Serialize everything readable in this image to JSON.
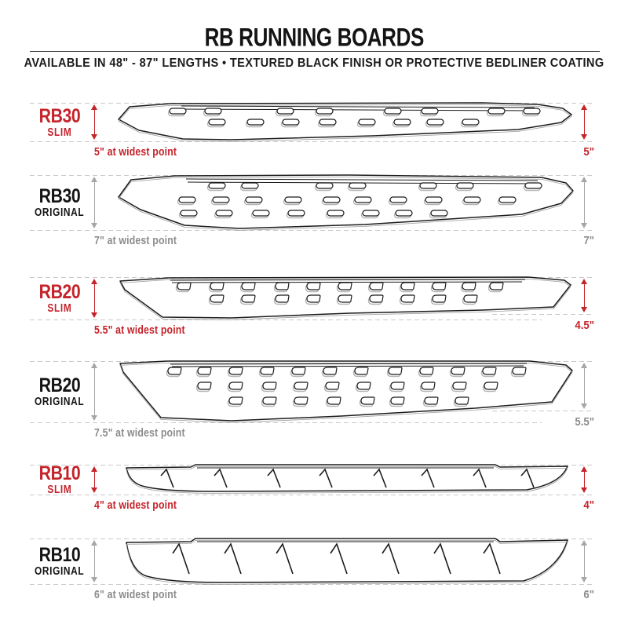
{
  "header": {
    "title": "RB RUNNING BOARDS",
    "subtitle": "AVAILABLE IN 48\" - 87\" LENGTHS   •   TEXTURED BLACK FINISH OR PROTECTIVE BEDLINER COATING"
  },
  "colors": {
    "accent_red": "#c5232a",
    "label_black": "#141414",
    "measure_gray": "#8c8c8c",
    "arrow_gray": "#a6a6a6",
    "guide_dash_gray": "#c9c9c9",
    "board_outline": "#1b1b1b"
  },
  "boards": [
    {
      "model": "RB30",
      "variant": "SLIM",
      "left_measurement": "5\" at widest point",
      "right_measurement": "5\"",
      "accent": "red"
    },
    {
      "model": "RB30",
      "variant": "ORIGINAL",
      "left_measurement": "7\" at widest point",
      "right_measurement": "7\"",
      "accent": "black"
    },
    {
      "model": "RB20",
      "variant": "SLIM",
      "left_measurement": "5.5\" at widest point",
      "right_measurement": "4.5\"",
      "accent": "red"
    },
    {
      "model": "RB20",
      "variant": "ORIGINAL",
      "left_measurement": "7.5\" at widest point",
      "right_measurement": "5.5\"",
      "accent": "black"
    },
    {
      "model": "RB10",
      "variant": "SLIM",
      "left_measurement": "4\" at widest point",
      "right_measurement": "4\"",
      "accent": "red"
    },
    {
      "model": "RB10",
      "variant": "ORIGINAL",
      "left_measurement": "6\" at widest point",
      "right_measurement": "6\"",
      "accent": "black"
    }
  ]
}
